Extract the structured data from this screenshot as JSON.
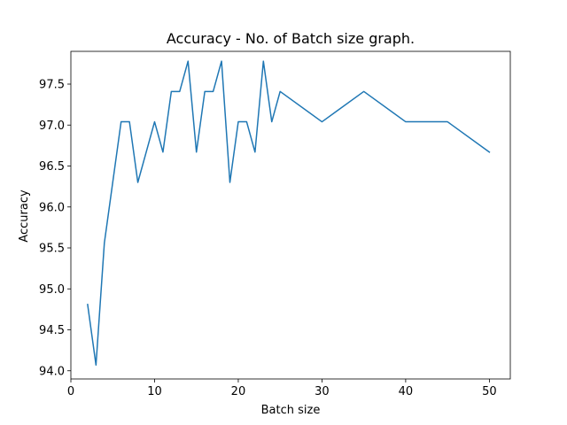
{
  "chart_data": {
    "type": "line",
    "title": "Accuracy - No. of Batch size graph.",
    "xlabel": "Batch size",
    "ylabel": "Accuracy",
    "xlim": [
      0,
      52.5
    ],
    "ylim": [
      93.9,
      97.9
    ],
    "xticks": [
      0,
      10,
      20,
      30,
      40,
      50
    ],
    "yticks": [
      94.0,
      94.5,
      95.0,
      95.5,
      96.0,
      96.5,
      97.0,
      97.5
    ],
    "xtick_labels": [
      "0",
      "10",
      "20",
      "30",
      "40",
      "50"
    ],
    "ytick_labels": [
      "94.0",
      "94.5",
      "95.0",
      "95.5",
      "96.0",
      "96.5",
      "97.0",
      "97.5"
    ],
    "grid": false,
    "legend": false,
    "line_color": "#1f77b4",
    "series": [
      {
        "x": [
          2,
          3,
          4,
          5,
          6,
          7,
          8,
          9,
          10,
          11,
          12,
          13,
          14,
          15,
          16,
          17,
          18,
          19,
          20,
          21,
          22,
          23,
          24,
          25,
          30,
          35,
          40,
          45,
          50
        ],
        "values": [
          94.81,
          94.07,
          95.56,
          96.3,
          97.04,
          97.04,
          96.3,
          96.67,
          97.04,
          96.67,
          97.41,
          97.41,
          97.78,
          96.67,
          97.41,
          97.41,
          97.78,
          96.3,
          97.04,
          97.04,
          96.67,
          97.78,
          97.04,
          97.41,
          97.04,
          97.41,
          97.04,
          97.04,
          96.67
        ]
      }
    ]
  }
}
